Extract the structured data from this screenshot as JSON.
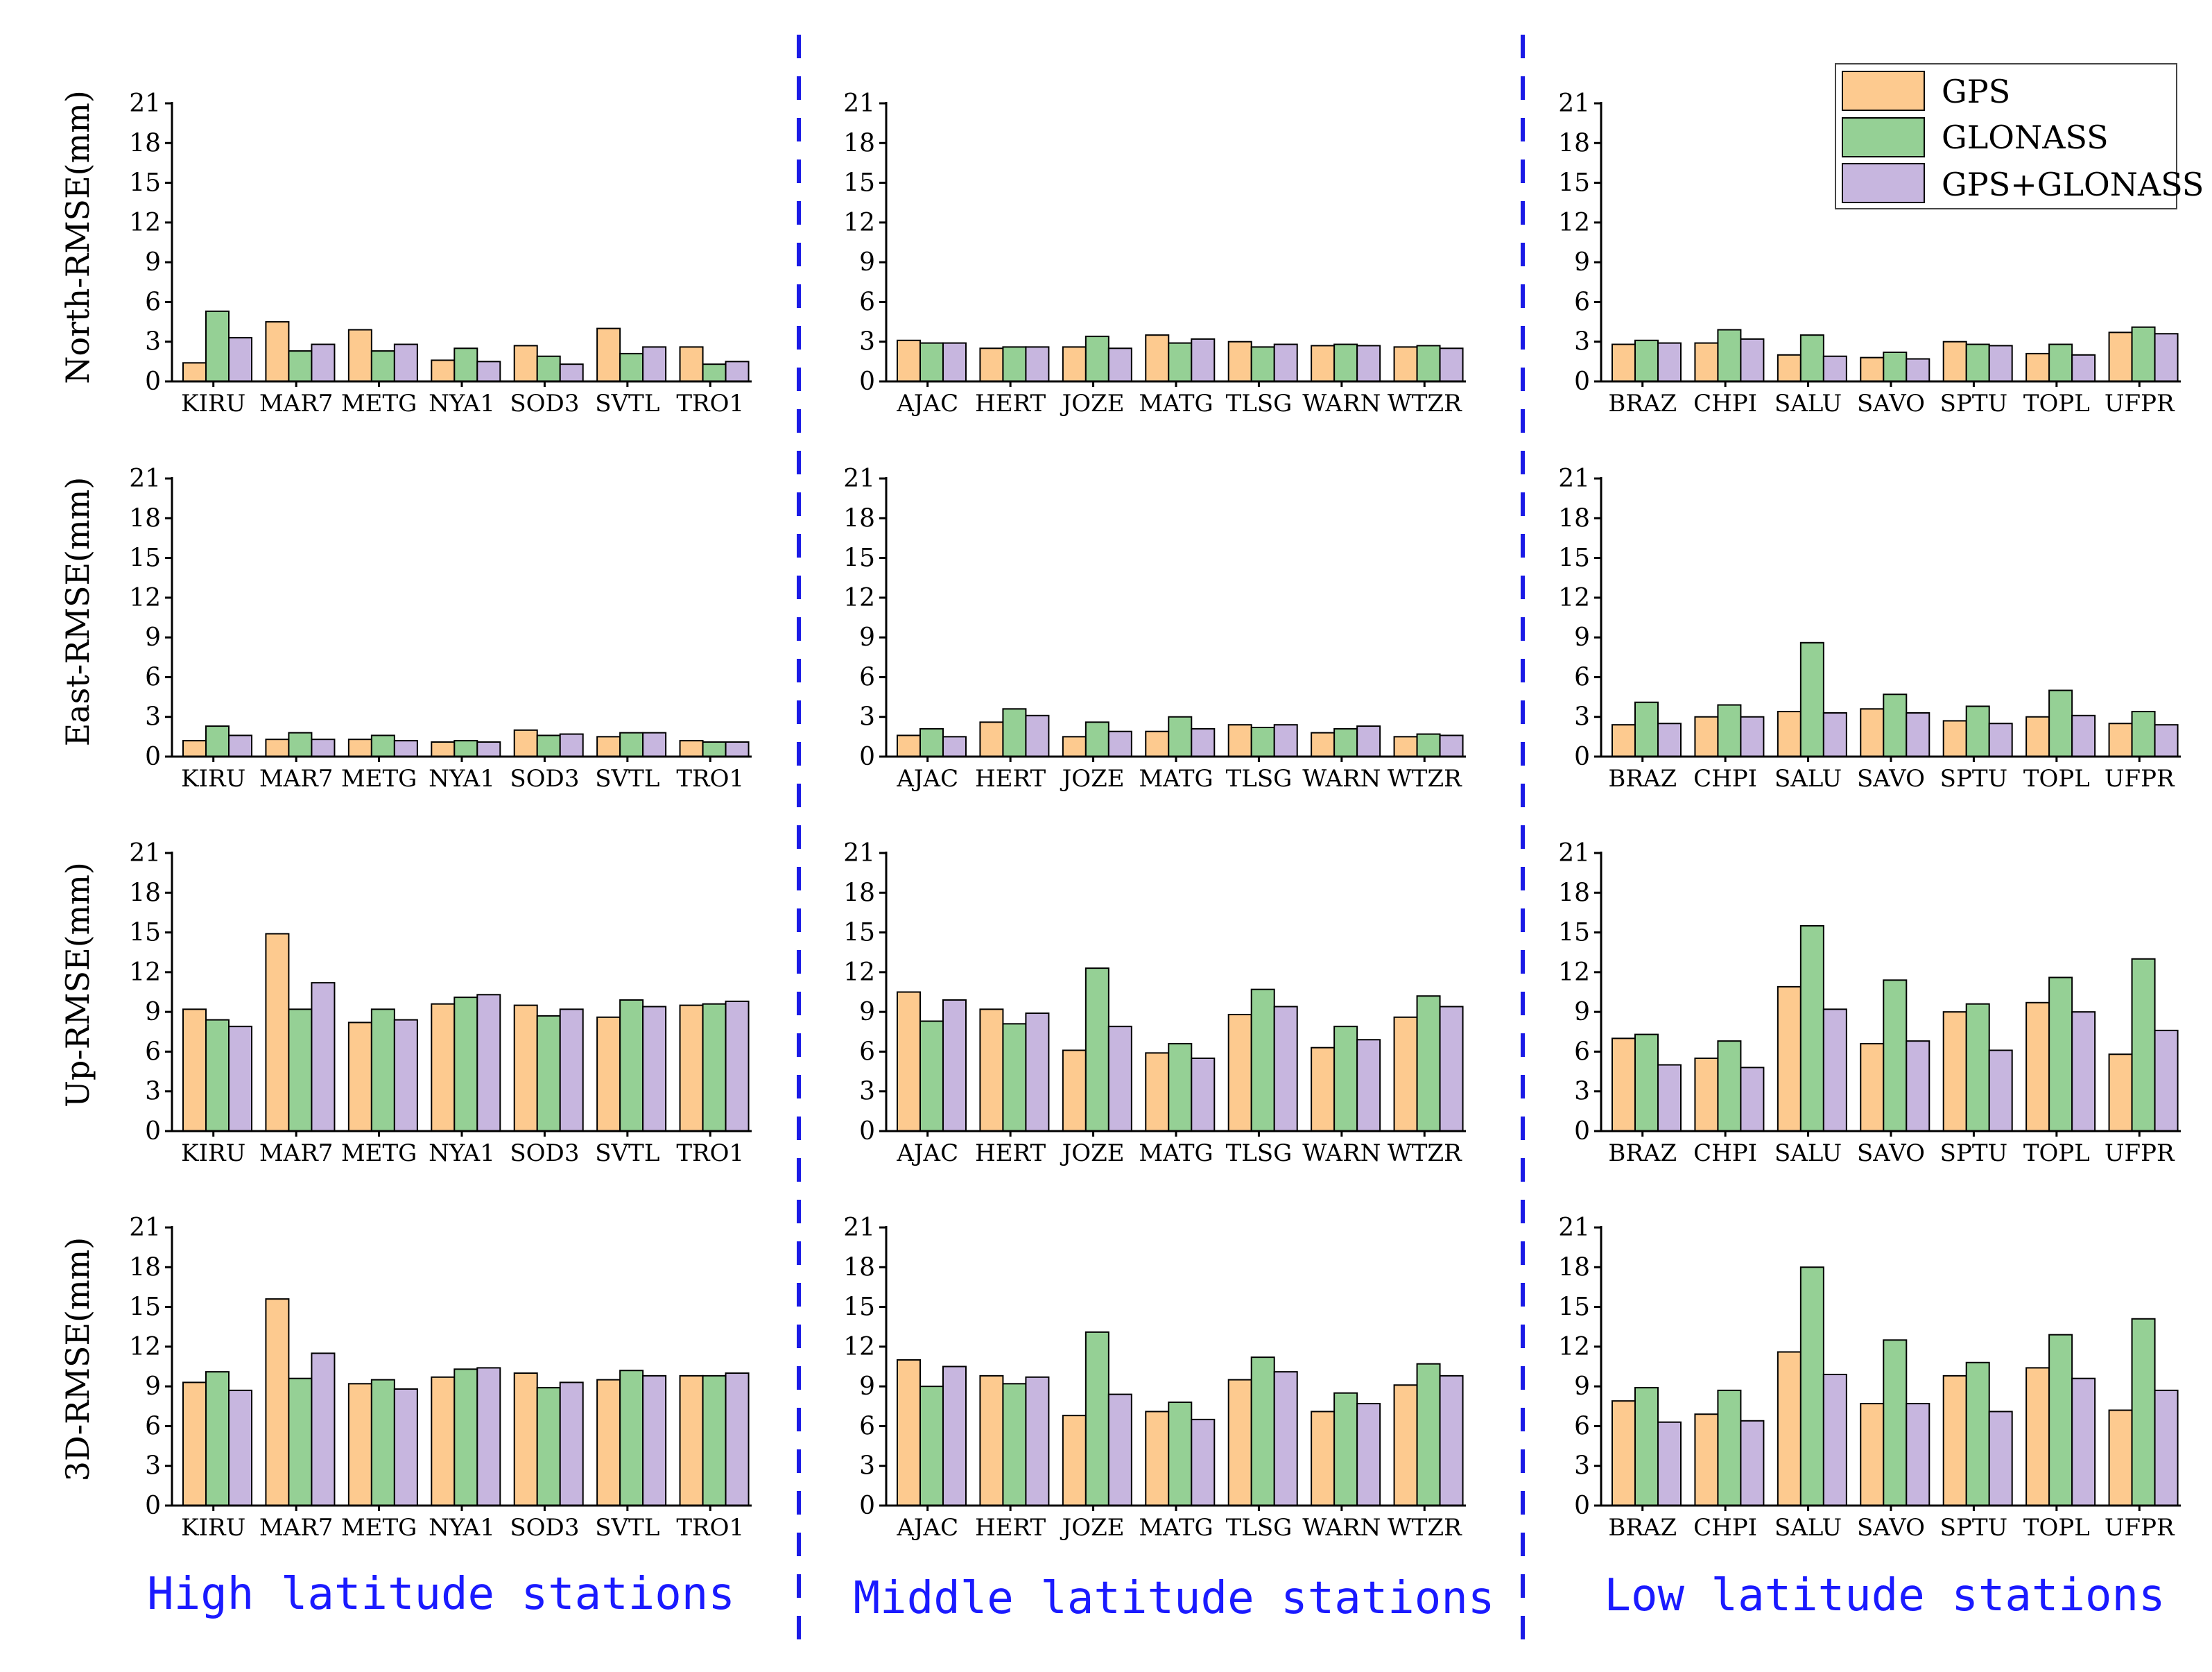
{
  "legend": {
    "items": [
      {
        "name": "GPS",
        "color": "#fdca8f"
      },
      {
        "name": "GLONASS",
        "color": "#95d095"
      },
      {
        "name": "GPS+GLONASS",
        "color": "#c7b6df"
      }
    ]
  },
  "groups": [
    {
      "title": "High latitude stations",
      "stations": [
        "KIRU",
        "MAR7",
        "METG",
        "NYA1",
        "SOD3",
        "SVTL",
        "TRO1"
      ]
    },
    {
      "title": "Middle latitude stations",
      "stations": [
        "AJAC",
        "HERT",
        "JOZE",
        "MATG",
        "TLSG",
        "WARN",
        "WTZR"
      ]
    },
    {
      "title": "Low latitude stations",
      "stations": [
        "BRAZ",
        "CHPI",
        "SALU",
        "SAVO",
        "SPTU",
        "TOPL",
        "UFPR"
      ]
    }
  ],
  "rows": [
    {
      "ylabel": "North-RMSE(mm)"
    },
    {
      "ylabel": "East-RMSE(mm)"
    },
    {
      "ylabel": "Up-RMSE(mm)"
    },
    {
      "ylabel": "3D-RMSE(mm)"
    }
  ],
  "chart_data": [
    {
      "type": "bar",
      "row": 0,
      "group": 0,
      "ylabel": "North-RMSE(mm)",
      "ylim": [
        0,
        21
      ],
      "yticks": [
        0,
        3,
        6,
        9,
        12,
        15,
        18,
        21
      ],
      "categories": [
        "KIRU",
        "MAR7",
        "METG",
        "NYA1",
        "SOD3",
        "SVTL",
        "TRO1"
      ],
      "series": [
        {
          "name": "GPS",
          "values": [
            1.4,
            4.5,
            3.9,
            1.6,
            2.7,
            4.0,
            2.6
          ]
        },
        {
          "name": "GLONASS",
          "values": [
            5.3,
            2.3,
            2.3,
            2.5,
            1.9,
            2.1,
            1.3
          ]
        },
        {
          "name": "GPS+GLONASS",
          "values": [
            3.3,
            2.8,
            2.8,
            1.5,
            1.3,
            2.6,
            1.5
          ]
        }
      ]
    },
    {
      "type": "bar",
      "row": 0,
      "group": 1,
      "ylabel": "North-RMSE(mm)",
      "ylim": [
        0,
        21
      ],
      "yticks": [
        0,
        3,
        6,
        9,
        12,
        15,
        18,
        21
      ],
      "categories": [
        "AJAC",
        "HERT",
        "JOZE",
        "MATG",
        "TLSG",
        "WARN",
        "WTZR"
      ],
      "series": [
        {
          "name": "GPS",
          "values": [
            3.1,
            2.5,
            2.6,
            3.5,
            3.0,
            2.7,
            2.6
          ]
        },
        {
          "name": "GLONASS",
          "values": [
            2.9,
            2.6,
            3.4,
            2.9,
            2.6,
            2.8,
            2.7
          ]
        },
        {
          "name": "GPS+GLONASS",
          "values": [
            2.9,
            2.6,
            2.5,
            3.2,
            2.8,
            2.7,
            2.5
          ]
        }
      ]
    },
    {
      "type": "bar",
      "row": 0,
      "group": 2,
      "ylabel": "North-RMSE(mm)",
      "ylim": [
        0,
        21
      ],
      "yticks": [
        0,
        3,
        6,
        9,
        12,
        15,
        18,
        21
      ],
      "categories": [
        "BRAZ",
        "CHPI",
        "SALU",
        "SAVO",
        "SPTU",
        "TOPL",
        "UFPR"
      ],
      "series": [
        {
          "name": "GPS",
          "values": [
            2.8,
            2.9,
            2.0,
            1.8,
            3.0,
            2.1,
            3.7
          ]
        },
        {
          "name": "GLONASS",
          "values": [
            3.1,
            3.9,
            3.5,
            2.2,
            2.8,
            2.8,
            4.1
          ]
        },
        {
          "name": "GPS+GLONASS",
          "values": [
            2.9,
            3.2,
            1.9,
            1.7,
            2.7,
            2.0,
            3.6
          ]
        }
      ]
    },
    {
      "type": "bar",
      "row": 1,
      "group": 0,
      "ylabel": "East-RMSE(mm)",
      "ylim": [
        0,
        21
      ],
      "yticks": [
        0,
        3,
        6,
        9,
        12,
        15,
        18,
        21
      ],
      "categories": [
        "KIRU",
        "MAR7",
        "METG",
        "NYA1",
        "SOD3",
        "SVTL",
        "TRO1"
      ],
      "series": [
        {
          "name": "GPS",
          "values": [
            1.2,
            1.3,
            1.3,
            1.1,
            2.0,
            1.5,
            1.2
          ]
        },
        {
          "name": "GLONASS",
          "values": [
            2.3,
            1.8,
            1.6,
            1.2,
            1.6,
            1.8,
            1.1
          ]
        },
        {
          "name": "GPS+GLONASS",
          "values": [
            1.6,
            1.3,
            1.2,
            1.1,
            1.7,
            1.8,
            1.1
          ]
        }
      ]
    },
    {
      "type": "bar",
      "row": 1,
      "group": 1,
      "ylabel": "East-RMSE(mm)",
      "ylim": [
        0,
        21
      ],
      "yticks": [
        0,
        3,
        6,
        9,
        12,
        15,
        18,
        21
      ],
      "categories": [
        "AJAC",
        "HERT",
        "JOZE",
        "MATG",
        "TLSG",
        "WARN",
        "WTZR"
      ],
      "series": [
        {
          "name": "GPS",
          "values": [
            1.6,
            2.6,
            1.5,
            1.9,
            2.4,
            1.8,
            1.5
          ]
        },
        {
          "name": "GLONASS",
          "values": [
            2.1,
            3.6,
            2.6,
            3.0,
            2.2,
            2.1,
            1.7
          ]
        },
        {
          "name": "GPS+GLONASS",
          "values": [
            1.5,
            3.1,
            1.9,
            2.1,
            2.4,
            2.3,
            1.6
          ]
        }
      ]
    },
    {
      "type": "bar",
      "row": 1,
      "group": 2,
      "ylabel": "East-RMSE(mm)",
      "ylim": [
        0,
        21
      ],
      "yticks": [
        0,
        3,
        6,
        9,
        12,
        15,
        18,
        21
      ],
      "categories": [
        "BRAZ",
        "CHPI",
        "SALU",
        "SAVO",
        "SPTU",
        "TOPL",
        "UFPR"
      ],
      "series": [
        {
          "name": "GPS",
          "values": [
            2.4,
            3.0,
            3.4,
            3.6,
            2.7,
            3.0,
            2.5
          ]
        },
        {
          "name": "GLONASS",
          "values": [
            4.1,
            3.9,
            8.6,
            4.7,
            3.8,
            5.0,
            3.4
          ]
        },
        {
          "name": "GPS+GLONASS",
          "values": [
            2.5,
            3.0,
            3.3,
            3.3,
            2.5,
            3.1,
            2.4
          ]
        }
      ]
    },
    {
      "type": "bar",
      "row": 2,
      "group": 0,
      "ylabel": "Up-RMSE(mm)",
      "ylim": [
        0,
        21
      ],
      "yticks": [
        0,
        3,
        6,
        9,
        12,
        15,
        18,
        21
      ],
      "categories": [
        "KIRU",
        "MAR7",
        "METG",
        "NYA1",
        "SOD3",
        "SVTL",
        "TRO1"
      ],
      "series": [
        {
          "name": "GPS",
          "values": [
            9.2,
            14.9,
            8.2,
            9.6,
            9.5,
            8.6,
            9.5
          ]
        },
        {
          "name": "GLONASS",
          "values": [
            8.4,
            9.2,
            9.2,
            10.1,
            8.7,
            9.9,
            9.6
          ]
        },
        {
          "name": "GPS+GLONASS",
          "values": [
            7.9,
            11.2,
            8.4,
            10.3,
            9.2,
            9.4,
            9.8
          ]
        }
      ]
    },
    {
      "type": "bar",
      "row": 2,
      "group": 1,
      "ylabel": "Up-RMSE(mm)",
      "ylim": [
        0,
        21
      ],
      "yticks": [
        0,
        3,
        6,
        9,
        12,
        15,
        18,
        21
      ],
      "categories": [
        "AJAC",
        "HERT",
        "JOZE",
        "MATG",
        "TLSG",
        "WARN",
        "WTZR"
      ],
      "series": [
        {
          "name": "GPS",
          "values": [
            10.5,
            9.2,
            6.1,
            5.9,
            8.8,
            6.3,
            8.6
          ]
        },
        {
          "name": "GLONASS",
          "values": [
            8.3,
            8.1,
            12.3,
            6.6,
            10.7,
            7.9,
            10.2
          ]
        },
        {
          "name": "GPS+GLONASS",
          "values": [
            9.9,
            8.9,
            7.9,
            5.5,
            9.4,
            6.9,
            9.4
          ]
        }
      ]
    },
    {
      "type": "bar",
      "row": 2,
      "group": 2,
      "ylabel": "Up-RMSE(mm)",
      "ylim": [
        0,
        21
      ],
      "yticks": [
        0,
        3,
        6,
        9,
        12,
        15,
        18,
        21
      ],
      "categories": [
        "BRAZ",
        "CHPI",
        "SALU",
        "SAVO",
        "SPTU",
        "TOPL",
        "UFPR"
      ],
      "series": [
        {
          "name": "GPS",
          "values": [
            7.0,
            5.5,
            10.9,
            6.6,
            9.0,
            9.7,
            5.8
          ]
        },
        {
          "name": "GLONASS",
          "values": [
            7.3,
            6.8,
            15.5,
            11.4,
            9.6,
            11.6,
            13.0
          ]
        },
        {
          "name": "GPS+GLONASS",
          "values": [
            5.0,
            4.8,
            9.2,
            6.8,
            6.1,
            9.0,
            7.6
          ]
        }
      ]
    },
    {
      "type": "bar",
      "row": 3,
      "group": 0,
      "ylabel": "3D-RMSE(mm)",
      "ylim": [
        0,
        21
      ],
      "yticks": [
        0,
        3,
        6,
        9,
        12,
        15,
        18,
        21
      ],
      "categories": [
        "KIRU",
        "MAR7",
        "METG",
        "NYA1",
        "SOD3",
        "SVTL",
        "TRO1"
      ],
      "series": [
        {
          "name": "GPS",
          "values": [
            9.3,
            15.6,
            9.2,
            9.7,
            10.0,
            9.5,
            9.8
          ]
        },
        {
          "name": "GLONASS",
          "values": [
            10.1,
            9.6,
            9.5,
            10.3,
            8.9,
            10.2,
            9.8
          ]
        },
        {
          "name": "GPS+GLONASS",
          "values": [
            8.7,
            11.5,
            8.8,
            10.4,
            9.3,
            9.8,
            10.0
          ]
        }
      ]
    },
    {
      "type": "bar",
      "row": 3,
      "group": 1,
      "ylabel": "3D-RMSE(mm)",
      "ylim": [
        0,
        21
      ],
      "yticks": [
        0,
        3,
        6,
        9,
        12,
        15,
        18,
        21
      ],
      "categories": [
        "AJAC",
        "HERT",
        "JOZE",
        "MATG",
        "TLSG",
        "WARN",
        "WTZR"
      ],
      "series": [
        {
          "name": "GPS",
          "values": [
            11.0,
            9.8,
            6.8,
            7.1,
            9.5,
            7.1,
            9.1
          ]
        },
        {
          "name": "GLONASS",
          "values": [
            9.0,
            9.2,
            13.1,
            7.8,
            11.2,
            8.5,
            10.7
          ]
        },
        {
          "name": "GPS+GLONASS",
          "values": [
            10.5,
            9.7,
            8.4,
            6.5,
            10.1,
            7.7,
            9.8
          ]
        }
      ]
    },
    {
      "type": "bar",
      "row": 3,
      "group": 2,
      "ylabel": "3D-RMSE(mm)",
      "ylim": [
        0,
        21
      ],
      "yticks": [
        0,
        3,
        6,
        9,
        12,
        15,
        18,
        21
      ],
      "categories": [
        "BRAZ",
        "CHPI",
        "SALU",
        "SAVO",
        "SPTU",
        "TOPL",
        "UFPR"
      ],
      "series": [
        {
          "name": "GPS",
          "values": [
            7.9,
            6.9,
            11.6,
            7.7,
            9.8,
            10.4,
            7.2
          ]
        },
        {
          "name": "GLONASS",
          "values": [
            8.9,
            8.7,
            18.0,
            12.5,
            10.8,
            12.9,
            14.1
          ]
        },
        {
          "name": "GPS+GLONASS",
          "values": [
            6.3,
            6.4,
            9.9,
            7.7,
            7.1,
            9.6,
            8.7
          ]
        }
      ]
    }
  ]
}
